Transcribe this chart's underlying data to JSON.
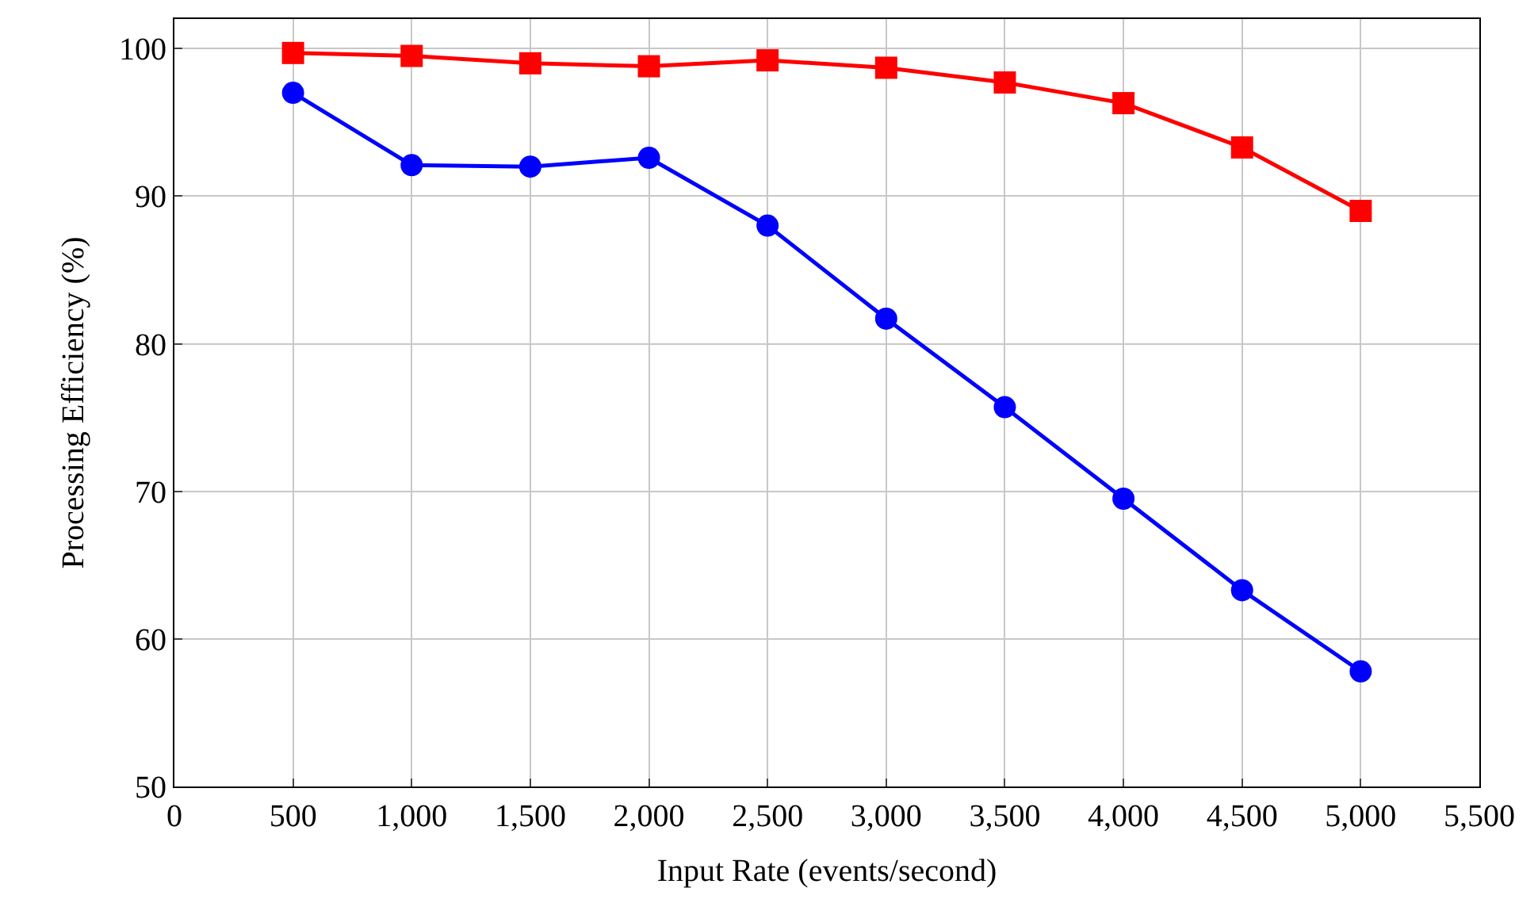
{
  "chart_data": {
    "type": "line",
    "xlabel": "Input Rate (events/second)",
    "ylabel": "Processing Efficiency (%)",
    "x": [
      500,
      1000,
      1500,
      2000,
      2500,
      3000,
      3500,
      4000,
      4500,
      5000
    ],
    "series": [
      {
        "color": "#0000ff",
        "marker": "circle",
        "values": [
          97,
          92.1,
          92,
          92.6,
          88,
          81.7,
          75.7,
          69.5,
          63.3,
          57.8
        ]
      },
      {
        "color": "#ff0000",
        "marker": "square",
        "values": [
          99.7,
          99.5,
          99,
          98.8,
          99.2,
          98.7,
          97.7,
          96.3,
          93.3,
          89
        ]
      }
    ],
    "xlim": [
      0,
      5500
    ],
    "xticks": [
      0,
      {
        "value": 500,
        "label": "500"
      },
      {
        "value": 1000,
        "label": "1,000"
      },
      {
        "value": 1500,
        "label": "1,500"
      },
      {
        "value": 2000,
        "label": "2,000"
      },
      {
        "value": 2500,
        "label": "2,500"
      },
      {
        "value": 3000,
        "label": "3,000"
      },
      {
        "value": 3500,
        "label": "3,500"
      },
      {
        "value": 4000,
        "label": "4,000"
      },
      {
        "value": 4500,
        "label": "4,500"
      },
      {
        "value": 5000,
        "label": "5,000"
      },
      {
        "value": 5500,
        "label": "5,500"
      }
    ],
    "ylim": [
      50,
      102
    ],
    "yticks": [
      50,
      60,
      70,
      80,
      90,
      100
    ],
    "grid": true,
    "line_style": "solid"
  }
}
